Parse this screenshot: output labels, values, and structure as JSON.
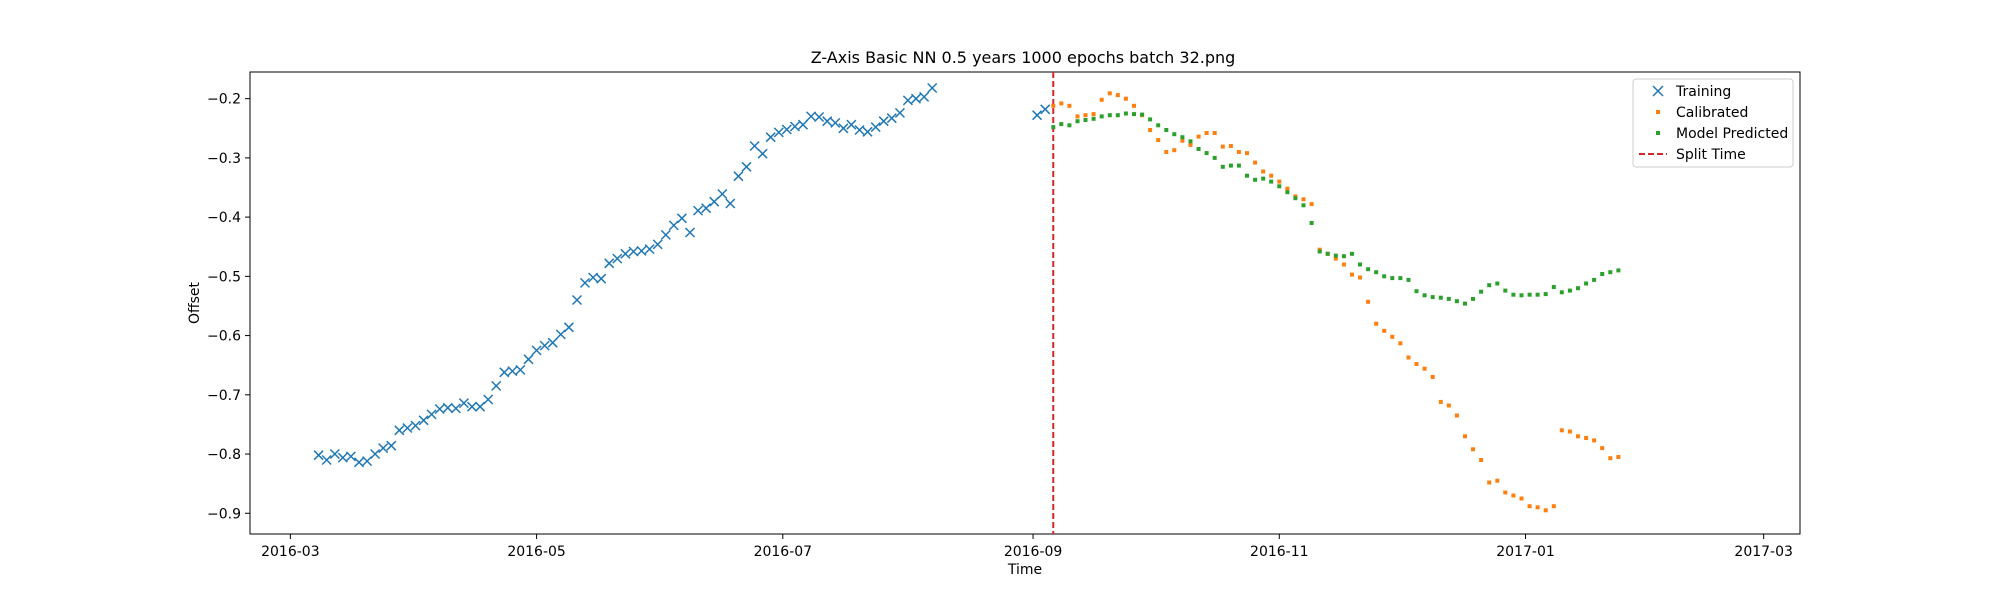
{
  "chart_data": {
    "type": "scatter",
    "title": "Z-Axis Basic NN 0.5 years 1000 epochs batch 32.png",
    "xlabel": "Time",
    "ylabel": "Offset",
    "xlim": [
      "2016-02-20",
      "2017-03-10"
    ],
    "ylim": [
      -0.935,
      -0.155
    ],
    "x_ticks": [
      "2016-03",
      "2016-05",
      "2016-07",
      "2016-09",
      "2016-11",
      "2017-01",
      "2017-03"
    ],
    "y_ticks": [
      -0.9,
      -0.8,
      -0.7,
      -0.6,
      -0.5,
      -0.4,
      -0.3,
      -0.2
    ],
    "y_tick_labels": [
      "−0.9",
      "−0.8",
      "−0.7",
      "−0.6",
      "−0.5",
      "−0.4",
      "−0.3",
      "−0.2"
    ],
    "grid": false,
    "legend_position": "top-right",
    "split_time": "2016-09-06",
    "series": [
      {
        "name": "Training",
        "marker": "x",
        "color": "#1f77b4",
        "points": [
          [
            "2016-03-08",
            -0.802
          ],
          [
            "2016-03-10",
            -0.81
          ],
          [
            "2016-03-12",
            -0.8
          ],
          [
            "2016-03-14",
            -0.806
          ],
          [
            "2016-03-16",
            -0.804
          ],
          [
            "2016-03-18",
            -0.814
          ],
          [
            "2016-03-20",
            -0.812
          ],
          [
            "2016-03-22",
            -0.8
          ],
          [
            "2016-03-24",
            -0.79
          ],
          [
            "2016-03-26",
            -0.786
          ],
          [
            "2016-03-28",
            -0.76
          ],
          [
            "2016-03-30",
            -0.756
          ],
          [
            "2016-04-01",
            -0.752
          ],
          [
            "2016-04-03",
            -0.743
          ],
          [
            "2016-04-05",
            -0.733
          ],
          [
            "2016-04-07",
            -0.724
          ],
          [
            "2016-04-09",
            -0.722
          ],
          [
            "2016-04-11",
            -0.723
          ],
          [
            "2016-04-13",
            -0.714
          ],
          [
            "2016-04-15",
            -0.72
          ],
          [
            "2016-04-17",
            -0.72
          ],
          [
            "2016-04-19",
            -0.708
          ],
          [
            "2016-04-21",
            -0.685
          ],
          [
            "2016-04-23",
            -0.662
          ],
          [
            "2016-04-25",
            -0.66
          ],
          [
            "2016-04-27",
            -0.658
          ],
          [
            "2016-04-29",
            -0.64
          ],
          [
            "2016-05-01",
            -0.625
          ],
          [
            "2016-05-03",
            -0.617
          ],
          [
            "2016-05-05",
            -0.612
          ],
          [
            "2016-05-07",
            -0.598
          ],
          [
            "2016-05-09",
            -0.586
          ],
          [
            "2016-05-11",
            -0.54
          ],
          [
            "2016-05-13",
            -0.511
          ],
          [
            "2016-05-15",
            -0.502
          ],
          [
            "2016-05-17",
            -0.504
          ],
          [
            "2016-05-19",
            -0.478
          ],
          [
            "2016-05-21",
            -0.47
          ],
          [
            "2016-05-23",
            -0.462
          ],
          [
            "2016-05-25",
            -0.458
          ],
          [
            "2016-05-27",
            -0.457
          ],
          [
            "2016-05-29",
            -0.454
          ],
          [
            "2016-05-31",
            -0.446
          ],
          [
            "2016-06-02",
            -0.43
          ],
          [
            "2016-06-04",
            -0.414
          ],
          [
            "2016-06-06",
            -0.402
          ],
          [
            "2016-06-08",
            -0.426
          ],
          [
            "2016-06-10",
            -0.389
          ],
          [
            "2016-06-12",
            -0.385
          ],
          [
            "2016-06-14",
            -0.374
          ],
          [
            "2016-06-16",
            -0.361
          ],
          [
            "2016-06-18",
            -0.377
          ],
          [
            "2016-06-20",
            -0.331
          ],
          [
            "2016-06-22",
            -0.315
          ],
          [
            "2016-06-24",
            -0.28
          ],
          [
            "2016-06-26",
            -0.293
          ],
          [
            "2016-06-28",
            -0.265
          ],
          [
            "2016-06-30",
            -0.257
          ],
          [
            "2016-07-02",
            -0.252
          ],
          [
            "2016-07-04",
            -0.247
          ],
          [
            "2016-07-06",
            -0.244
          ],
          [
            "2016-07-08",
            -0.23
          ],
          [
            "2016-07-10",
            -0.231
          ],
          [
            "2016-07-12",
            -0.238
          ],
          [
            "2016-07-14",
            -0.241
          ],
          [
            "2016-07-16",
            -0.25
          ],
          [
            "2016-07-18",
            -0.244
          ],
          [
            "2016-07-20",
            -0.253
          ],
          [
            "2016-07-22",
            -0.256
          ],
          [
            "2016-07-24",
            -0.248
          ],
          [
            "2016-07-26",
            -0.238
          ],
          [
            "2016-07-28",
            -0.233
          ],
          [
            "2016-07-30",
            -0.224
          ],
          [
            "2016-08-01",
            -0.203
          ],
          [
            "2016-08-03",
            -0.2
          ],
          [
            "2016-08-05",
            -0.197
          ],
          [
            "2016-08-07",
            -0.182
          ],
          [
            "2016-09-02",
            -0.228
          ],
          [
            "2016-09-04",
            -0.218
          ]
        ]
      },
      {
        "name": "Calibrated",
        "marker": "dot",
        "color": "#ff7f0e",
        "points": [
          [
            "2016-09-06",
            -0.212
          ],
          [
            "2016-09-08",
            -0.208
          ],
          [
            "2016-09-10",
            -0.212
          ],
          [
            "2016-09-12",
            -0.23
          ],
          [
            "2016-09-14",
            -0.228
          ],
          [
            "2016-09-16",
            -0.226
          ],
          [
            "2016-09-18",
            -0.202
          ],
          [
            "2016-09-20",
            -0.191
          ],
          [
            "2016-09-22",
            -0.194
          ],
          [
            "2016-09-24",
            -0.2
          ],
          [
            "2016-09-26",
            -0.212
          ],
          [
            "2016-09-28",
            -0.228
          ],
          [
            "2016-09-30",
            -0.253
          ],
          [
            "2016-10-02",
            -0.27
          ],
          [
            "2016-10-04",
            -0.29
          ],
          [
            "2016-10-06",
            -0.287
          ],
          [
            "2016-10-08",
            -0.271
          ],
          [
            "2016-10-10",
            -0.278
          ],
          [
            "2016-10-12",
            -0.264
          ],
          [
            "2016-10-14",
            -0.258
          ],
          [
            "2016-10-16",
            -0.258
          ],
          [
            "2016-10-18",
            -0.281
          ],
          [
            "2016-10-20",
            -0.28
          ],
          [
            "2016-10-22",
            -0.29
          ],
          [
            "2016-10-24",
            -0.292
          ],
          [
            "2016-10-26",
            -0.308
          ],
          [
            "2016-10-28",
            -0.323
          ],
          [
            "2016-10-30",
            -0.33
          ],
          [
            "2016-11-01",
            -0.34
          ],
          [
            "2016-11-03",
            -0.352
          ],
          [
            "2016-11-05",
            -0.365
          ],
          [
            "2016-11-07",
            -0.37
          ],
          [
            "2016-11-09",
            -0.378
          ],
          [
            "2016-11-11",
            -0.455
          ],
          [
            "2016-11-13",
            -0.462
          ],
          [
            "2016-11-15",
            -0.47
          ],
          [
            "2016-11-17",
            -0.48
          ],
          [
            "2016-11-19",
            -0.497
          ],
          [
            "2016-11-21",
            -0.502
          ],
          [
            "2016-11-23",
            -0.543
          ],
          [
            "2016-11-25",
            -0.58
          ],
          [
            "2016-11-27",
            -0.592
          ],
          [
            "2016-11-29",
            -0.602
          ],
          [
            "2016-12-01",
            -0.613
          ],
          [
            "2016-12-03",
            -0.637
          ],
          [
            "2016-12-05",
            -0.648
          ],
          [
            "2016-12-07",
            -0.656
          ],
          [
            "2016-12-09",
            -0.67
          ],
          [
            "2016-12-11",
            -0.712
          ],
          [
            "2016-12-13",
            -0.718
          ],
          [
            "2016-12-15",
            -0.735
          ],
          [
            "2016-12-17",
            -0.77
          ],
          [
            "2016-12-19",
            -0.792
          ],
          [
            "2016-12-21",
            -0.81
          ],
          [
            "2016-12-23",
            -0.848
          ],
          [
            "2016-12-25",
            -0.845
          ],
          [
            "2016-12-27",
            -0.865
          ],
          [
            "2016-12-29",
            -0.87
          ],
          [
            "2016-12-31",
            -0.875
          ],
          [
            "2017-01-02",
            -0.888
          ],
          [
            "2017-01-04",
            -0.89
          ],
          [
            "2017-01-06",
            -0.895
          ],
          [
            "2017-01-08",
            -0.888
          ],
          [
            "2017-01-10",
            -0.76
          ],
          [
            "2017-01-12",
            -0.762
          ],
          [
            "2017-01-14",
            -0.77
          ],
          [
            "2017-01-16",
            -0.773
          ],
          [
            "2017-01-18",
            -0.777
          ],
          [
            "2017-01-20",
            -0.79
          ],
          [
            "2017-01-22",
            -0.807
          ],
          [
            "2017-01-24",
            -0.805
          ]
        ]
      },
      {
        "name": "Model Predicted",
        "marker": "dot",
        "color": "#2ca02c",
        "points": [
          [
            "2016-09-06",
            -0.248
          ],
          [
            "2016-09-08",
            -0.243
          ],
          [
            "2016-09-10",
            -0.245
          ],
          [
            "2016-09-12",
            -0.238
          ],
          [
            "2016-09-14",
            -0.236
          ],
          [
            "2016-09-16",
            -0.234
          ],
          [
            "2016-09-18",
            -0.23
          ],
          [
            "2016-09-20",
            -0.228
          ],
          [
            "2016-09-22",
            -0.228
          ],
          [
            "2016-09-24",
            -0.225
          ],
          [
            "2016-09-26",
            -0.226
          ],
          [
            "2016-09-28",
            -0.227
          ],
          [
            "2016-09-30",
            -0.235
          ],
          [
            "2016-10-02",
            -0.245
          ],
          [
            "2016-10-04",
            -0.253
          ],
          [
            "2016-10-06",
            -0.26
          ],
          [
            "2016-10-08",
            -0.265
          ],
          [
            "2016-10-10",
            -0.272
          ],
          [
            "2016-10-12",
            -0.285
          ],
          [
            "2016-10-14",
            -0.292
          ],
          [
            "2016-10-16",
            -0.3
          ],
          [
            "2016-10-18",
            -0.315
          ],
          [
            "2016-10-20",
            -0.313
          ],
          [
            "2016-10-22",
            -0.313
          ],
          [
            "2016-10-24",
            -0.33
          ],
          [
            "2016-10-26",
            -0.337
          ],
          [
            "2016-10-28",
            -0.335
          ],
          [
            "2016-10-30",
            -0.34
          ],
          [
            "2016-11-01",
            -0.348
          ],
          [
            "2016-11-03",
            -0.358
          ],
          [
            "2016-11-05",
            -0.368
          ],
          [
            "2016-11-07",
            -0.38
          ],
          [
            "2016-11-09",
            -0.41
          ],
          [
            "2016-11-11",
            -0.458
          ],
          [
            "2016-11-13",
            -0.462
          ],
          [
            "2016-11-15",
            -0.465
          ],
          [
            "2016-11-17",
            -0.466
          ],
          [
            "2016-11-19",
            -0.462
          ],
          [
            "2016-11-21",
            -0.48
          ],
          [
            "2016-11-23",
            -0.488
          ],
          [
            "2016-11-25",
            -0.493
          ],
          [
            "2016-11-27",
            -0.5
          ],
          [
            "2016-11-29",
            -0.503
          ],
          [
            "2016-12-01",
            -0.503
          ],
          [
            "2016-12-03",
            -0.506
          ],
          [
            "2016-12-05",
            -0.525
          ],
          [
            "2016-12-07",
            -0.532
          ],
          [
            "2016-12-09",
            -0.535
          ],
          [
            "2016-12-11",
            -0.536
          ],
          [
            "2016-12-13",
            -0.538
          ],
          [
            "2016-12-15",
            -0.542
          ],
          [
            "2016-12-17",
            -0.546
          ],
          [
            "2016-12-19",
            -0.538
          ],
          [
            "2016-12-21",
            -0.526
          ],
          [
            "2016-12-23",
            -0.515
          ],
          [
            "2016-12-25",
            -0.512
          ],
          [
            "2016-12-27",
            -0.524
          ],
          [
            "2016-12-29",
            -0.531
          ],
          [
            "2016-12-31",
            -0.532
          ],
          [
            "2017-01-02",
            -0.531
          ],
          [
            "2017-01-04",
            -0.531
          ],
          [
            "2017-01-06",
            -0.53
          ],
          [
            "2017-01-08",
            -0.518
          ],
          [
            "2017-01-10",
            -0.527
          ],
          [
            "2017-01-12",
            -0.524
          ],
          [
            "2017-01-14",
            -0.52
          ],
          [
            "2017-01-16",
            -0.512
          ],
          [
            "2017-01-18",
            -0.506
          ],
          [
            "2017-01-20",
            -0.496
          ],
          [
            "2017-01-22",
            -0.493
          ],
          [
            "2017-01-24",
            -0.49
          ]
        ]
      }
    ],
    "legend": {
      "entries": [
        {
          "label": "Training",
          "marker": "x",
          "color": "#1f77b4"
        },
        {
          "label": "Calibrated",
          "marker": "dot",
          "color": "#ff7f0e"
        },
        {
          "label": "Model Predicted",
          "marker": "dot",
          "color": "#2ca02c"
        },
        {
          "label": "Split Time",
          "marker": "dashed-line",
          "color": "#d62728"
        }
      ]
    }
  }
}
